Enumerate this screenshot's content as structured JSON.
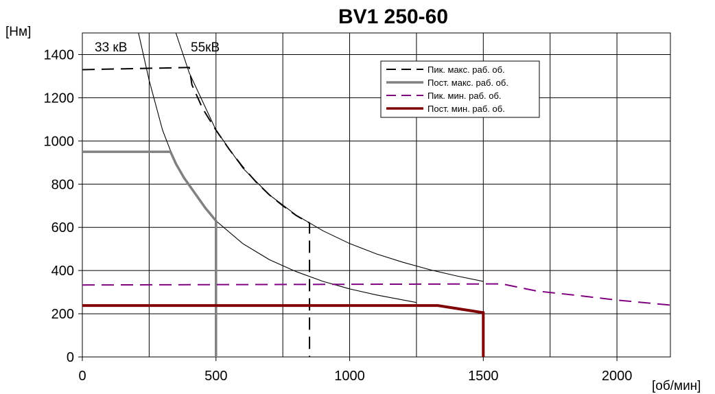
{
  "chart_data": {
    "type": "line",
    "title": "BV1 250-60",
    "ylabel": "[Нм]",
    "xlabel": "[об/мин]",
    "xlim": [
      0,
      2200
    ],
    "ylim": [
      0,
      1500
    ],
    "x_ticks": [
      "0",
      "500",
      "1000",
      "1500",
      "2000"
    ],
    "y_ticks": [
      "0",
      "200",
      "400",
      "600",
      "800",
      "1000",
      "1200",
      "1400"
    ],
    "x_tick_values": [
      0,
      500,
      1000,
      1500,
      2000
    ],
    "y_tick_values": [
      0,
      200,
      400,
      600,
      800,
      1000,
      1200,
      1400
    ],
    "grid": true,
    "x_minor_grid_step": 250,
    "legend_position": "top-right",
    "series": [
      {
        "name": "Пик. макс. раб. об.",
        "color": "#000000",
        "style": "dashed",
        "points": [
          [
            0,
            1330
          ],
          [
            400,
            1340
          ],
          [
            410,
            1260
          ],
          [
            450,
            1150
          ],
          [
            500,
            1050
          ],
          [
            550,
            960
          ],
          [
            600,
            880
          ],
          [
            650,
            810
          ],
          [
            700,
            750
          ],
          [
            750,
            700
          ],
          [
            800,
            655
          ],
          [
            850,
            620
          ],
          [
            850,
            0
          ]
        ]
      },
      {
        "name": "Пост. макс. раб. об.",
        "color": "#808080",
        "style": "solid",
        "points": [
          [
            0,
            950
          ],
          [
            330,
            950
          ],
          [
            350,
            895
          ],
          [
            380,
            830
          ],
          [
            420,
            760
          ],
          [
            460,
            690
          ],
          [
            500,
            630
          ],
          [
            500,
            0
          ]
        ]
      },
      {
        "name": "Пик. мин. раб. об.",
        "color": "#800080",
        "style": "dashed",
        "points": [
          [
            0,
            333
          ],
          [
            1570,
            338
          ],
          [
            1700,
            305
          ],
          [
            1850,
            285
          ],
          [
            2000,
            263
          ],
          [
            2200,
            240
          ]
        ]
      },
      {
        "name": "Пост. мин. раб. об.",
        "color": "#800000",
        "style": "solid",
        "points": [
          [
            0,
            238
          ],
          [
            1330,
            238
          ],
          [
            1500,
            205
          ],
          [
            1500,
            0
          ]
        ]
      }
    ],
    "reference_curves": [
      {
        "label": "33 кВ",
        "color": "#000000",
        "points": [
          [
            210,
            1500
          ],
          [
            250,
            1280
          ],
          [
            300,
            1050
          ],
          [
            350,
            890
          ],
          [
            400,
            790
          ],
          [
            500,
            630
          ],
          [
            600,
            525
          ],
          [
            700,
            450
          ],
          [
            800,
            395
          ],
          [
            900,
            350
          ],
          [
            1000,
            315
          ],
          [
            1100,
            287
          ],
          [
            1250,
            252
          ]
        ]
      },
      {
        "label": "55кВ",
        "color": "#000000",
        "points": [
          [
            350,
            1500
          ],
          [
            400,
            1315
          ],
          [
            500,
            1050
          ],
          [
            600,
            875
          ],
          [
            700,
            750
          ],
          [
            800,
            657
          ],
          [
            900,
            584
          ],
          [
            1000,
            525
          ],
          [
            1100,
            477
          ],
          [
            1200,
            438
          ],
          [
            1300,
            404
          ],
          [
            1400,
            375
          ],
          [
            1500,
            350
          ]
        ]
      }
    ]
  }
}
